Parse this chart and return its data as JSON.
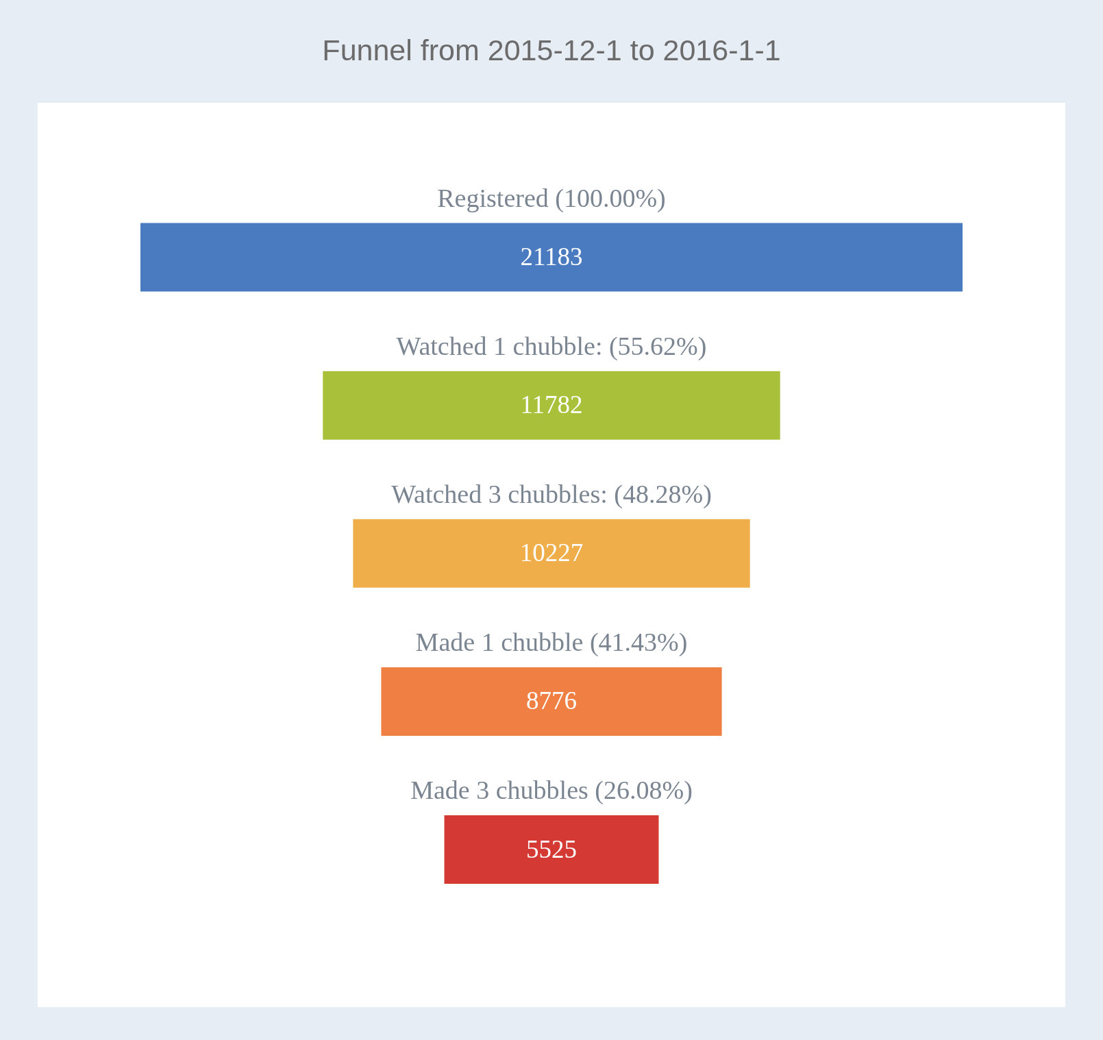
{
  "chart_data": {
    "type": "other",
    "title": "Funnel from 2015-12-1 to 2016-1-1",
    "categories": [
      "Registered (100.00%)",
      "Watched 1 chubble: (55.62%)",
      "Watched 3 chubbles: (48.28%)",
      "Made 1 chubble (41.43%)",
      "Made 3 chubbles (26.08%)"
    ],
    "values": [
      21183,
      11782,
      10227,
      8776,
      5525
    ],
    "colors": [
      "#4a7bc1",
      "#a9c03a",
      "#efae4a",
      "#ef7f42",
      "#d43a33"
    ],
    "data_labels": true
  }
}
